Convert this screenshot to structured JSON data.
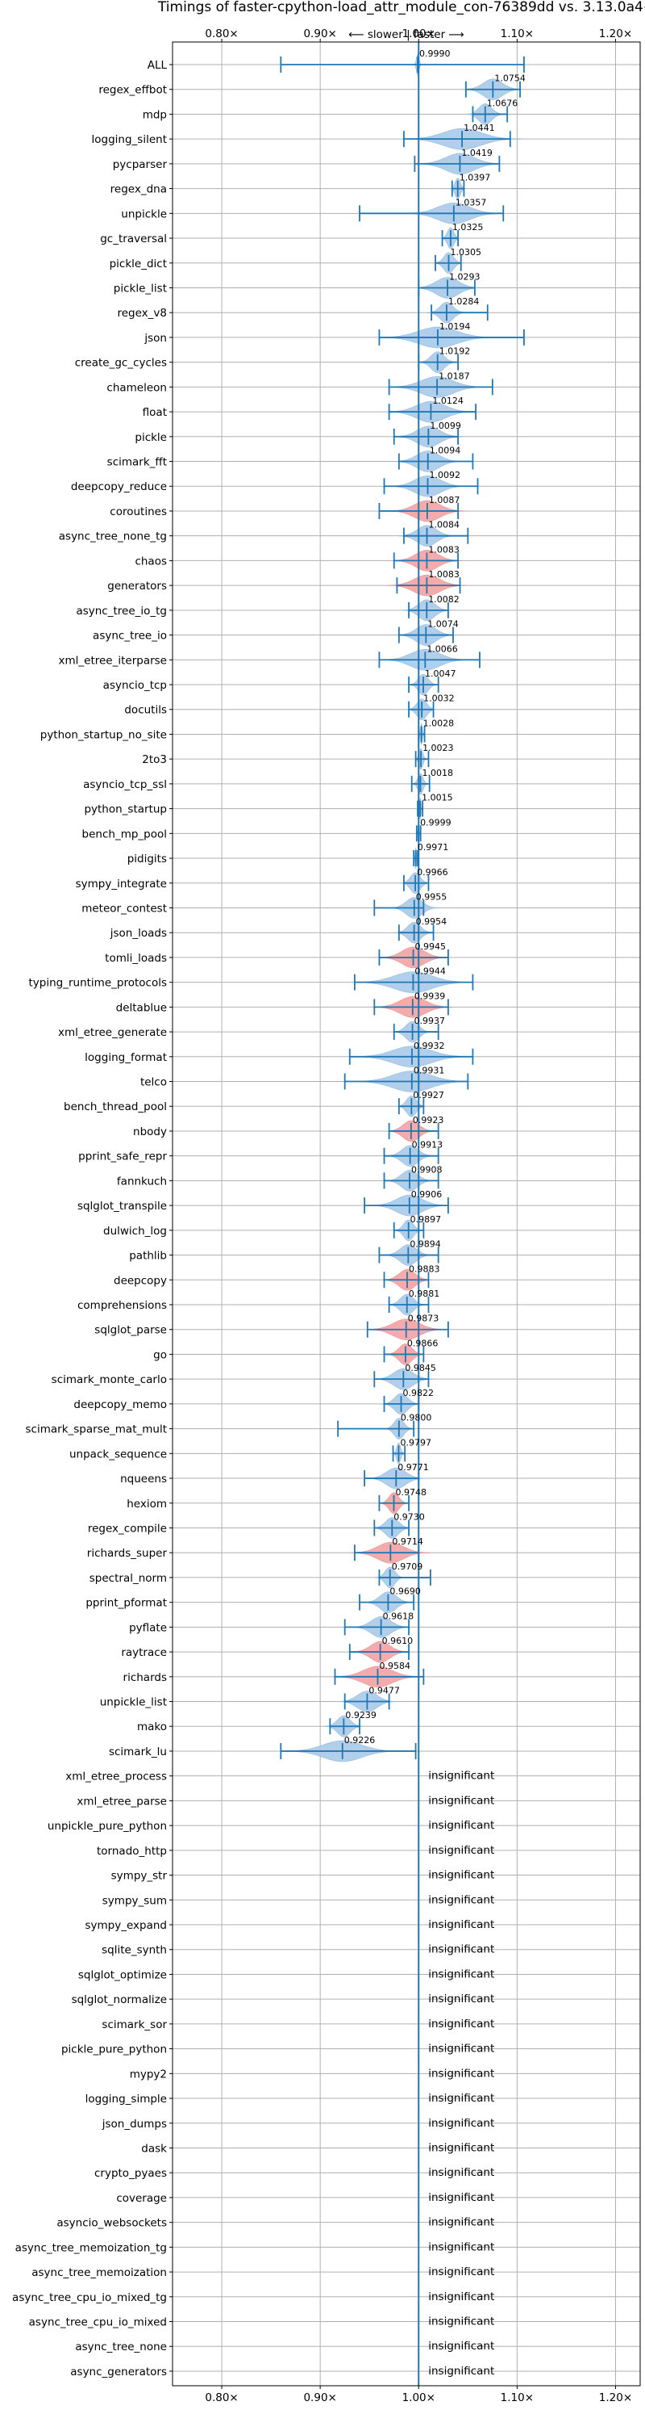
{
  "chart_data": {
    "type": "violin",
    "title": "Timings of faster-cpython-load_attr_module_con-76389dd vs. 3.13.0a4+",
    "direction_label": "⟵ slower | faster ⟶",
    "xlim": [
      0.75,
      1.225
    ],
    "xticks": [
      0.8,
      0.9,
      1.0,
      1.1,
      1.2
    ],
    "xtick_labels": [
      "0.80×",
      "0.90×",
      "1.00×",
      "1.10×",
      "1.20×"
    ],
    "grid": true,
    "reference_line": 1.0,
    "insignificant_text": "insignificant",
    "colors": {
      "faster": "#1f77b4",
      "slower": "#d62728",
      "line": "#1f77b4",
      "grid": "#b0b0b0"
    },
    "benchmarks": [
      {
        "name": "ALL",
        "value": 0.999,
        "label": "0.9990",
        "low": 0.86,
        "high": 1.107,
        "spread": 0.004,
        "color": "blue"
      },
      {
        "name": "regex_effbot",
        "value": 1.0754,
        "label": "1.0754",
        "low": 1.048,
        "high": 1.103,
        "spread": 0.03,
        "color": "blue"
      },
      {
        "name": "mdp",
        "value": 1.0676,
        "label": "1.0676",
        "low": 1.055,
        "high": 1.09,
        "spread": 0.02,
        "color": "blue"
      },
      {
        "name": "logging_silent",
        "value": 1.0441,
        "label": "1.0441",
        "low": 0.985,
        "high": 1.093,
        "spread": 0.06,
        "color": "blue"
      },
      {
        "name": "pycparser",
        "value": 1.0419,
        "label": "1.0419",
        "low": 0.996,
        "high": 1.082,
        "spread": 0.045,
        "color": "blue"
      },
      {
        "name": "regex_dna",
        "value": 1.0397,
        "label": "1.0397",
        "low": 1.034,
        "high": 1.046,
        "spread": 0.008,
        "color": "blue"
      },
      {
        "name": "unpickle",
        "value": 1.0357,
        "label": "1.0357",
        "low": 0.94,
        "high": 1.086,
        "spread": 0.05,
        "color": "blue"
      },
      {
        "name": "gc_traversal",
        "value": 1.0325,
        "label": "1.0325",
        "low": 1.024,
        "high": 1.04,
        "spread": 0.01,
        "color": "blue"
      },
      {
        "name": "pickle_dict",
        "value": 1.0305,
        "label": "1.0305",
        "low": 1.017,
        "high": 1.043,
        "spread": 0.015,
        "color": "blue"
      },
      {
        "name": "pickle_list",
        "value": 1.0293,
        "label": "1.0293",
        "low": 1.0,
        "high": 1.057,
        "spread": 0.035,
        "color": "blue"
      },
      {
        "name": "regex_v8",
        "value": 1.0284,
        "label": "1.0284",
        "low": 1.013,
        "high": 1.07,
        "spread": 0.02,
        "color": "blue"
      },
      {
        "name": "json",
        "value": 1.0194,
        "label": "1.0194",
        "low": 0.96,
        "high": 1.107,
        "spread": 0.06,
        "color": "blue"
      },
      {
        "name": "create_gc_cycles",
        "value": 1.0192,
        "label": "1.0192",
        "low": 1.0,
        "high": 1.04,
        "spread": 0.02,
        "color": "blue"
      },
      {
        "name": "chameleon",
        "value": 1.0187,
        "label": "1.0187",
        "low": 0.97,
        "high": 1.075,
        "spread": 0.05,
        "color": "blue"
      },
      {
        "name": "float",
        "value": 1.0124,
        "label": "1.0124",
        "low": 0.97,
        "high": 1.058,
        "spread": 0.045,
        "color": "blue"
      },
      {
        "name": "pickle",
        "value": 1.0099,
        "label": "1.0099",
        "low": 0.975,
        "high": 1.04,
        "spread": 0.035,
        "color": "blue"
      },
      {
        "name": "scimark_fft",
        "value": 1.0094,
        "label": "1.0094",
        "low": 0.98,
        "high": 1.055,
        "spread": 0.035,
        "color": "blue"
      },
      {
        "name": "deepcopy_reduce",
        "value": 1.0092,
        "label": "1.0092",
        "low": 0.965,
        "high": 1.06,
        "spread": 0.04,
        "color": "blue"
      },
      {
        "name": "coroutines",
        "value": 1.0087,
        "label": "1.0087",
        "low": 0.96,
        "high": 1.04,
        "spread": 0.04,
        "color": "red"
      },
      {
        "name": "async_tree_none_tg",
        "value": 1.0084,
        "label": "1.0084",
        "low": 0.985,
        "high": 1.05,
        "spread": 0.03,
        "color": "blue"
      },
      {
        "name": "chaos",
        "value": 1.0083,
        "label": "1.0083",
        "low": 0.975,
        "high": 1.04,
        "spread": 0.035,
        "color": "red"
      },
      {
        "name": "generators",
        "value": 1.0083,
        "label": "1.0083",
        "low": 0.978,
        "high": 1.042,
        "spread": 0.04,
        "color": "red"
      },
      {
        "name": "async_tree_io_tg",
        "value": 1.0082,
        "label": "1.0082",
        "low": 0.99,
        "high": 1.03,
        "spread": 0.025,
        "color": "blue"
      },
      {
        "name": "async_tree_io",
        "value": 1.0074,
        "label": "1.0074",
        "low": 0.98,
        "high": 1.035,
        "spread": 0.03,
        "color": "blue"
      },
      {
        "name": "xml_etree_iterparse",
        "value": 1.0066,
        "label": "1.0066",
        "low": 0.96,
        "high": 1.062,
        "spread": 0.045,
        "color": "blue"
      },
      {
        "name": "asyncio_tcp",
        "value": 1.0047,
        "label": "1.0047",
        "low": 0.99,
        "high": 1.02,
        "spread": 0.015,
        "color": "blue"
      },
      {
        "name": "docutils",
        "value": 1.0032,
        "label": "1.0032",
        "low": 0.99,
        "high": 1.015,
        "spread": 0.015,
        "color": "blue"
      },
      {
        "name": "python_startup_no_site",
        "value": 1.0028,
        "label": "1.0028",
        "low": 1.0,
        "high": 1.006,
        "spread": 0.003,
        "color": "blue"
      },
      {
        "name": "2to3",
        "value": 1.0023,
        "label": "1.0023",
        "low": 0.997,
        "high": 1.01,
        "spread": 0.006,
        "color": "blue"
      },
      {
        "name": "asyncio_tcp_ssl",
        "value": 1.0018,
        "label": "1.0018",
        "low": 0.993,
        "high": 1.011,
        "spread": 0.008,
        "color": "blue"
      },
      {
        "name": "python_startup",
        "value": 1.0015,
        "label": "1.0015",
        "low": 0.999,
        "high": 1.004,
        "spread": 0.003,
        "color": "blue"
      },
      {
        "name": "bench_mp_pool",
        "value": 0.9999,
        "label": "0.9999",
        "low": 0.998,
        "high": 1.002,
        "spread": 0.002,
        "color": "blue"
      },
      {
        "name": "pidigits",
        "value": 0.9971,
        "label": "0.9971",
        "low": 0.995,
        "high": 0.999,
        "spread": 0.002,
        "color": "blue"
      },
      {
        "name": "sympy_integrate",
        "value": 0.9966,
        "label": "0.9966",
        "low": 0.985,
        "high": 1.01,
        "spread": 0.015,
        "color": "blue"
      },
      {
        "name": "meteor_contest",
        "value": 0.9955,
        "label": "0.9955",
        "low": 0.955,
        "high": 1.005,
        "spread": 0.025,
        "color": "blue"
      },
      {
        "name": "json_loads",
        "value": 0.9954,
        "label": "0.9954",
        "low": 0.98,
        "high": 1.015,
        "spread": 0.02,
        "color": "blue"
      },
      {
        "name": "tomli_loads",
        "value": 0.9945,
        "label": "0.9945",
        "low": 0.96,
        "high": 1.03,
        "spread": 0.035,
        "color": "red"
      },
      {
        "name": "typing_runtime_protocols",
        "value": 0.9944,
        "label": "0.9944",
        "low": 0.935,
        "high": 1.055,
        "spread": 0.06,
        "color": "blue"
      },
      {
        "name": "deltablue",
        "value": 0.9939,
        "label": "0.9939",
        "low": 0.955,
        "high": 1.03,
        "spread": 0.04,
        "color": "red"
      },
      {
        "name": "xml_etree_generate",
        "value": 0.9937,
        "label": "0.9937",
        "low": 0.975,
        "high": 1.02,
        "spread": 0.02,
        "color": "blue"
      },
      {
        "name": "logging_format",
        "value": 0.9932,
        "label": "0.9932",
        "low": 0.93,
        "high": 1.055,
        "spread": 0.06,
        "color": "blue"
      },
      {
        "name": "telco",
        "value": 0.9931,
        "label": "0.9931",
        "low": 0.925,
        "high": 1.05,
        "spread": 0.06,
        "color": "blue"
      },
      {
        "name": "bench_thread_pool",
        "value": 0.9927,
        "label": "0.9927",
        "low": 0.98,
        "high": 1.005,
        "spread": 0.015,
        "color": "blue"
      },
      {
        "name": "nbody",
        "value": 0.9923,
        "label": "0.9923",
        "low": 0.97,
        "high": 1.02,
        "spread": 0.025,
        "color": "red"
      },
      {
        "name": "pprint_safe_repr",
        "value": 0.9913,
        "label": "0.9913",
        "low": 0.965,
        "high": 1.02,
        "spread": 0.025,
        "color": "blue"
      },
      {
        "name": "fannkuch",
        "value": 0.9908,
        "label": "0.9908",
        "low": 0.965,
        "high": 1.02,
        "spread": 0.025,
        "color": "blue"
      },
      {
        "name": "sqlglot_transpile",
        "value": 0.9906,
        "label": "0.9906",
        "low": 0.945,
        "high": 1.03,
        "spread": 0.04,
        "color": "blue"
      },
      {
        "name": "dulwich_log",
        "value": 0.9897,
        "label": "0.9897",
        "low": 0.975,
        "high": 1.005,
        "spread": 0.015,
        "color": "blue"
      },
      {
        "name": "pathlib",
        "value": 0.9894,
        "label": "0.9894",
        "low": 0.96,
        "high": 1.02,
        "spread": 0.025,
        "color": "blue"
      },
      {
        "name": "deepcopy",
        "value": 0.9883,
        "label": "0.9883",
        "low": 0.965,
        "high": 1.01,
        "spread": 0.025,
        "color": "red"
      },
      {
        "name": "comprehensions",
        "value": 0.9881,
        "label": "0.9881",
        "low": 0.97,
        "high": 1.01,
        "spread": 0.02,
        "color": "blue"
      },
      {
        "name": "sqlglot_parse",
        "value": 0.9873,
        "label": "0.9873",
        "low": 0.948,
        "high": 1.03,
        "spread": 0.04,
        "color": "red"
      },
      {
        "name": "go",
        "value": 0.9866,
        "label": "0.9866",
        "low": 0.965,
        "high": 1.005,
        "spread": 0.02,
        "color": "red"
      },
      {
        "name": "scimark_monte_carlo",
        "value": 0.9845,
        "label": "0.9845",
        "low": 0.955,
        "high": 1.01,
        "spread": 0.03,
        "color": "blue"
      },
      {
        "name": "deepcopy_memo",
        "value": 0.9822,
        "label": "0.9822",
        "low": 0.965,
        "high": 1.0,
        "spread": 0.02,
        "color": "blue"
      },
      {
        "name": "scimark_sparse_mat_mult",
        "value": 0.98,
        "label": "0.9800",
        "low": 0.918,
        "high": 0.995,
        "spread": 0.015,
        "color": "blue"
      },
      {
        "name": "unpack_sequence",
        "value": 0.9797,
        "label": "0.9797",
        "low": 0.974,
        "high": 0.986,
        "spread": 0.006,
        "color": "blue"
      },
      {
        "name": "nqueens",
        "value": 0.9771,
        "label": "0.9771",
        "low": 0.945,
        "high": 1.0,
        "spread": 0.03,
        "color": "blue"
      },
      {
        "name": "hexiom",
        "value": 0.9748,
        "label": "0.9748",
        "low": 0.96,
        "high": 0.99,
        "spread": 0.015,
        "color": "red"
      },
      {
        "name": "regex_compile",
        "value": 0.973,
        "label": "0.9730",
        "low": 0.955,
        "high": 0.99,
        "spread": 0.02,
        "color": "blue"
      },
      {
        "name": "richards_super",
        "value": 0.9714,
        "label": "0.9714",
        "low": 0.935,
        "high": 1.0,
        "spread": 0.04,
        "color": "red"
      },
      {
        "name": "spectral_norm",
        "value": 0.9709,
        "label": "0.9709",
        "low": 0.96,
        "high": 1.012,
        "spread": 0.015,
        "color": "blue"
      },
      {
        "name": "pprint_pformat",
        "value": 0.969,
        "label": "0.9690",
        "low": 0.94,
        "high": 0.995,
        "spread": 0.025,
        "color": "blue"
      },
      {
        "name": "pyflate",
        "value": 0.9618,
        "label": "0.9618",
        "low": 0.925,
        "high": 0.99,
        "spread": 0.03,
        "color": "blue"
      },
      {
        "name": "raytrace",
        "value": 0.961,
        "label": "0.9610",
        "low": 0.93,
        "high": 0.99,
        "spread": 0.03,
        "color": "red"
      },
      {
        "name": "richards",
        "value": 0.9584,
        "label": "0.9584",
        "low": 0.915,
        "high": 1.005,
        "spread": 0.045,
        "color": "red"
      },
      {
        "name": "unpickle_list",
        "value": 0.9477,
        "label": "0.9477",
        "low": 0.925,
        "high": 0.97,
        "spread": 0.03,
        "color": "blue"
      },
      {
        "name": "mako",
        "value": 0.9239,
        "label": "0.9239",
        "low": 0.91,
        "high": 0.94,
        "spread": 0.02,
        "color": "blue"
      },
      {
        "name": "scimark_lu",
        "value": 0.9226,
        "label": "0.9226",
        "low": 0.86,
        "high": 0.997,
        "spread": 0.06,
        "color": "blue"
      },
      {
        "name": "xml_etree_process",
        "insignificant": true
      },
      {
        "name": "xml_etree_parse",
        "insignificant": true
      },
      {
        "name": "unpickle_pure_python",
        "insignificant": true
      },
      {
        "name": "tornado_http",
        "insignificant": true
      },
      {
        "name": "sympy_str",
        "insignificant": true
      },
      {
        "name": "sympy_sum",
        "insignificant": true
      },
      {
        "name": "sympy_expand",
        "insignificant": true
      },
      {
        "name": "sqlite_synth",
        "insignificant": true
      },
      {
        "name": "sqlglot_optimize",
        "insignificant": true
      },
      {
        "name": "sqlglot_normalize",
        "insignificant": true
      },
      {
        "name": "scimark_sor",
        "insignificant": true
      },
      {
        "name": "pickle_pure_python",
        "insignificant": true
      },
      {
        "name": "mypy2",
        "insignificant": true
      },
      {
        "name": "logging_simple",
        "insignificant": true
      },
      {
        "name": "json_dumps",
        "insignificant": true
      },
      {
        "name": "dask",
        "insignificant": true
      },
      {
        "name": "crypto_pyaes",
        "insignificant": true
      },
      {
        "name": "coverage",
        "insignificant": true
      },
      {
        "name": "asyncio_websockets",
        "insignificant": true
      },
      {
        "name": "async_tree_memoization_tg",
        "insignificant": true
      },
      {
        "name": "async_tree_memoization",
        "insignificant": true
      },
      {
        "name": "async_tree_cpu_io_mixed_tg",
        "insignificant": true
      },
      {
        "name": "async_tree_cpu_io_mixed",
        "insignificant": true
      },
      {
        "name": "async_tree_none",
        "insignificant": true
      },
      {
        "name": "async_generators",
        "insignificant": true
      }
    ]
  }
}
